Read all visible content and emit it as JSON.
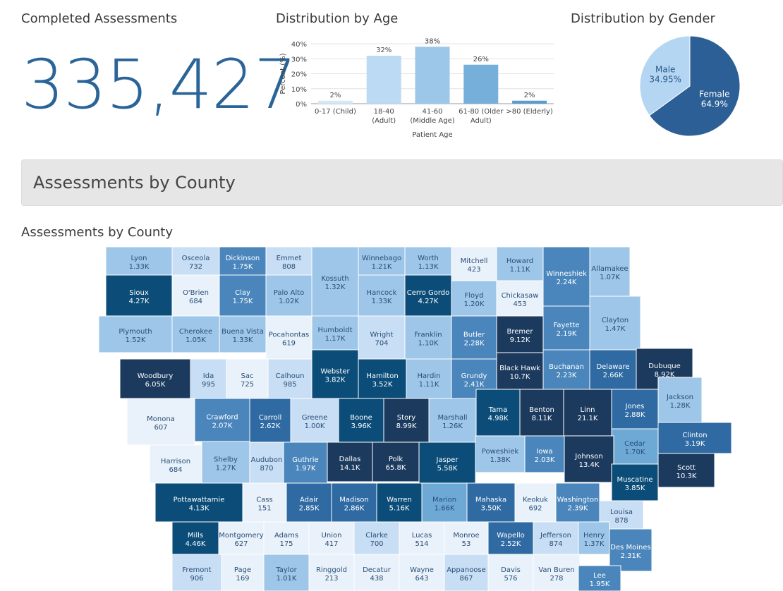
{
  "kpi": {
    "title": "Completed Assessments",
    "value": "335,427"
  },
  "age": {
    "title": "Distribution by Age"
  },
  "gender": {
    "title": "Distribution by Gender"
  },
  "section": {
    "header": "Assessments by County",
    "map_title": "Assessments by County"
  },
  "colors": {
    "c1": "#e9f2fb",
    "c2": "#c7def4",
    "c3": "#9dc6e8",
    "c4": "#6ea9d6",
    "c5": "#4a86bc",
    "c6": "#2f6aa3",
    "c7": "#0b4d78",
    "c8": "#1c3a5e",
    "pie_female": "#2c5f95",
    "pie_male": "#b5d6f2"
  },
  "chart_data": [
    {
      "type": "bar",
      "title": "Distribution by Age",
      "xlabel": "Patient Age",
      "ylabel": "Percent (%)",
      "ylim": [
        0,
        40
      ],
      "yticks": [
        "0%",
        "10%",
        "20%",
        "30%",
        "40%"
      ],
      "categories": [
        [
          "0-17 (Child)"
        ],
        [
          "18-40",
          "(Adult)"
        ],
        [
          "41-60",
          "(Middle Age)"
        ],
        [
          "61-80 (Older",
          "Adult)"
        ],
        [
          ">80 (Elderly)"
        ]
      ],
      "values": [
        2,
        32,
        38,
        26,
        2
      ],
      "labels": [
        "2%",
        "32%",
        "38%",
        "26%",
        "2%"
      ],
      "colors": [
        "#d6e8f7",
        "#bcdaf3",
        "#9cc7e9",
        "#76afda",
        "#5a9ccd"
      ]
    },
    {
      "type": "pie",
      "title": "Distribution by Gender",
      "slices": [
        {
          "name": "Female",
          "value": 64.9,
          "label": "64.9%",
          "color": "#2c5f95"
        },
        {
          "name": "Male",
          "value": 34.95,
          "label": "34.95%",
          "color": "#b5d6f2"
        }
      ]
    }
  ],
  "counties": [
    {
      "name": "Lyon",
      "value": "1.33K",
      "shade": 3
    },
    {
      "name": "Osceola",
      "value": "732",
      "shade": 2
    },
    {
      "name": "Dickinson",
      "value": "1.75K",
      "shade": 5
    },
    {
      "name": "Emmet",
      "value": "808",
      "shade": 2
    },
    {
      "name": "Kossuth",
      "value": "1.32K",
      "shade": 3
    },
    {
      "name": "Winnebago",
      "value": "1.21K",
      "shade": 3
    },
    {
      "name": "Worth",
      "value": "1.13K",
      "shade": 3
    },
    {
      "name": "Mitchell",
      "value": "423",
      "shade": 1
    },
    {
      "name": "Howard",
      "value": "1.11K",
      "shade": 3
    },
    {
      "name": "Winneshiek",
      "value": "2.24K",
      "shade": 5
    },
    {
      "name": "Allamakee",
      "value": "1.07K",
      "shade": 3
    },
    {
      "name": "Sioux",
      "value": "4.27K",
      "shade": 7
    },
    {
      "name": "O'Brien",
      "value": "684",
      "shade": 1
    },
    {
      "name": "Clay",
      "value": "1.75K",
      "shade": 5
    },
    {
      "name": "Palo Alto",
      "value": "1.02K",
      "shade": 3
    },
    {
      "name": "Hancock",
      "value": "1.33K",
      "shade": 3
    },
    {
      "name": "Cerro Gordo",
      "value": "4.27K",
      "shade": 7
    },
    {
      "name": "Floyd",
      "value": "1.20K",
      "shade": 3
    },
    {
      "name": "Chickasaw",
      "value": "453",
      "shade": 1
    },
    {
      "name": "Fayette",
      "value": "2.19K",
      "shade": 5
    },
    {
      "name": "Clayton",
      "value": "1.47K",
      "shade": 3
    },
    {
      "name": "Plymouth",
      "value": "1.52K",
      "shade": 3
    },
    {
      "name": "Cherokee",
      "value": "1.05K",
      "shade": 3
    },
    {
      "name": "Buena Vista",
      "value": "1.33K",
      "shade": 3
    },
    {
      "name": "Pocahontas",
      "value": "619",
      "shade": 1
    },
    {
      "name": "Humboldt",
      "value": "1.17K",
      "shade": 3
    },
    {
      "name": "Wright",
      "value": "704",
      "shade": 2
    },
    {
      "name": "Franklin",
      "value": "1.10K",
      "shade": 3
    },
    {
      "name": "Butler",
      "value": "2.28K",
      "shade": 5
    },
    {
      "name": "Bremer",
      "value": "9.12K",
      "shade": 8
    },
    {
      "name": "Black Hawk",
      "value": "10.7K",
      "shade": 8
    },
    {
      "name": "Buchanan",
      "value": "2.23K",
      "shade": 5
    },
    {
      "name": "Delaware",
      "value": "2.66K",
      "shade": 6
    },
    {
      "name": "Dubuque",
      "value": "8.92K",
      "shade": 8
    },
    {
      "name": "Woodbury",
      "value": "6.05K",
      "shade": 8
    },
    {
      "name": "Ida",
      "value": "995",
      "shade": 2
    },
    {
      "name": "Sac",
      "value": "725",
      "shade": 1
    },
    {
      "name": "Calhoun",
      "value": "985",
      "shade": 2
    },
    {
      "name": "Webster",
      "value": "3.82K",
      "shade": 7
    },
    {
      "name": "Hamilton",
      "value": "3.52K",
      "shade": 7
    },
    {
      "name": "Hardin",
      "value": "1.11K",
      "shade": 3
    },
    {
      "name": "Grundy",
      "value": "2.41K",
      "shade": 5
    },
    {
      "name": "Tama",
      "value": "4.98K",
      "shade": 7
    },
    {
      "name": "Benton",
      "value": "8.11K",
      "shade": 8
    },
    {
      "name": "Linn",
      "value": "21.1K",
      "shade": 8
    },
    {
      "name": "Jones",
      "value": "2.88K",
      "shade": 6
    },
    {
      "name": "Jackson",
      "value": "1.28K",
      "shade": 3
    },
    {
      "name": "Monona",
      "value": "607",
      "shade": 1
    },
    {
      "name": "Crawford",
      "value": "2.07K",
      "shade": 5
    },
    {
      "name": "Carroll",
      "value": "2.62K",
      "shade": 6
    },
    {
      "name": "Greene",
      "value": "1.00K",
      "shade": 2
    },
    {
      "name": "Boone",
      "value": "3.96K",
      "shade": 7
    },
    {
      "name": "Story",
      "value": "8.99K",
      "shade": 8
    },
    {
      "name": "Marshall",
      "value": "1.26K",
      "shade": 3
    },
    {
      "name": "Clinton",
      "value": "3.19K",
      "shade": 6
    },
    {
      "name": "Cedar",
      "value": "1.70K",
      "shade": 4
    },
    {
      "name": "Harrison",
      "value": "684",
      "shade": 1
    },
    {
      "name": "Shelby",
      "value": "1.27K",
      "shade": 3
    },
    {
      "name": "Audubon",
      "value": "870",
      "shade": 2
    },
    {
      "name": "Guthrie",
      "value": "1.97K",
      "shade": 5
    },
    {
      "name": "Dallas",
      "value": "14.1K",
      "shade": 8
    },
    {
      "name": "Polk",
      "value": "65.8K",
      "shade": 8
    },
    {
      "name": "Jasper",
      "value": "5.58K",
      "shade": 7
    },
    {
      "name": "Poweshiek",
      "value": "1.38K",
      "shade": 3
    },
    {
      "name": "Iowa",
      "value": "2.03K",
      "shade": 5
    },
    {
      "name": "Johnson",
      "value": "13.4K",
      "shade": 8
    },
    {
      "name": "Scott",
      "value": "10.3K",
      "shade": 8
    },
    {
      "name": "Muscatine",
      "value": "3.85K",
      "shade": 7
    },
    {
      "name": "Pottawattamie",
      "value": "4.13K",
      "shade": 7
    },
    {
      "name": "Cass",
      "value": "151",
      "shade": 1
    },
    {
      "name": "Adair",
      "value": "2.85K",
      "shade": 6
    },
    {
      "name": "Madison",
      "value": "2.86K",
      "shade": 6
    },
    {
      "name": "Warren",
      "value": "5.16K",
      "shade": 7
    },
    {
      "name": "Marion",
      "value": "1.66K",
      "shade": 4
    },
    {
      "name": "Mahaska",
      "value": "3.50K",
      "shade": 6
    },
    {
      "name": "Keokuk",
      "value": "692",
      "shade": 1
    },
    {
      "name": "Washington",
      "value": "2.39K",
      "shade": 5
    },
    {
      "name": "Louisa",
      "value": "878",
      "shade": 2
    },
    {
      "name": "Mills",
      "value": "4.46K",
      "shade": 7
    },
    {
      "name": "Montgomery",
      "value": "627",
      "shade": 1
    },
    {
      "name": "Adams",
      "value": "175",
      "shade": 1
    },
    {
      "name": "Union",
      "value": "417",
      "shade": 1
    },
    {
      "name": "Clarke",
      "value": "700",
      "shade": 2
    },
    {
      "name": "Lucas",
      "value": "514",
      "shade": 1
    },
    {
      "name": "Monroe",
      "value": "53",
      "shade": 1
    },
    {
      "name": "Wapello",
      "value": "2.52K",
      "shade": 6
    },
    {
      "name": "Jefferson",
      "value": "874",
      "shade": 2
    },
    {
      "name": "Henry",
      "value": "1.37K",
      "shade": 3
    },
    {
      "name": "Des Moines",
      "value": "2.31K",
      "shade": 5
    },
    {
      "name": "Fremont",
      "value": "906",
      "shade": 2
    },
    {
      "name": "Page",
      "value": "169",
      "shade": 1
    },
    {
      "name": "Taylor",
      "value": "1.01K",
      "shade": 3
    },
    {
      "name": "Ringgold",
      "value": "213",
      "shade": 1
    },
    {
      "name": "Decatur",
      "value": "438",
      "shade": 1
    },
    {
      "name": "Wayne",
      "value": "643",
      "shade": 1
    },
    {
      "name": "Appanoose",
      "value": "867",
      "shade": 2
    },
    {
      "name": "Davis",
      "value": "576",
      "shade": 1
    },
    {
      "name": "Van Buren",
      "value": "278",
      "shade": 1
    },
    {
      "name": "Lee",
      "value": "1.95K",
      "shade": 5
    }
  ]
}
